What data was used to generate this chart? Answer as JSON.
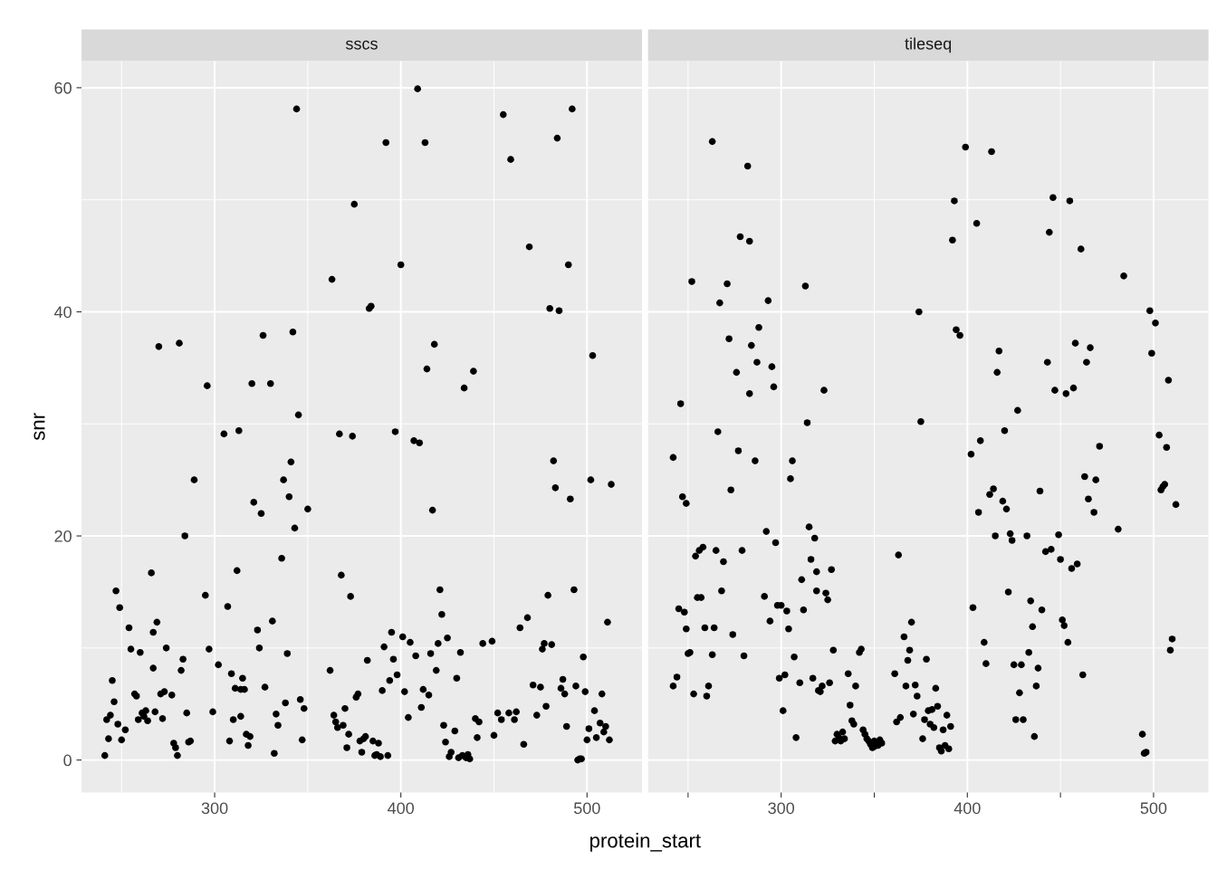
{
  "chart_data": [
    {
      "type": "scatter",
      "title": "sscs",
      "xlabel": "protein_start",
      "ylabel": "snr",
      "grid": true,
      "legend": false,
      "marker": "circle",
      "xlim": [
        228.5,
        529.5
      ],
      "ylim": [
        -2.9,
        62.4
      ],
      "xticks": [
        {
          "value": 250,
          "label": null
        },
        300,
        {
          "value": 350,
          "label": null
        },
        400,
        {
          "value": 450,
          "label": null
        },
        500
      ],
      "yticks": [
        0,
        {
          "value": 10,
          "label": null
        },
        20,
        {
          "value": 30,
          "label": null
        },
        40,
        {
          "value": 50,
          "label": null
        },
        60
      ],
      "series": [
        {
          "color": "#000000",
          "x": [
            241,
            242,
            243,
            244,
            245,
            246,
            247,
            248,
            249,
            250,
            252,
            254,
            255,
            257,
            258,
            259,
            260,
            261,
            262,
            263,
            264,
            266,
            267,
            267,
            268,
            269,
            270,
            271,
            272,
            273,
            274,
            277,
            278,
            279,
            280,
            281,
            282,
            283,
            284,
            285,
            286,
            287,
            289,
            295,
            296,
            297,
            299,
            302,
            305,
            307,
            308,
            309,
            310,
            311,
            312,
            313,
            314,
            314,
            315,
            316,
            317,
            318,
            319,
            320,
            321,
            323,
            324,
            325,
            326,
            327,
            330,
            331,
            332,
            333,
            334,
            336,
            337,
            338,
            339,
            340,
            341,
            342,
            343,
            344,
            345,
            346,
            347,
            348,
            350,
            362,
            363,
            364,
            365,
            366,
            367,
            368,
            369,
            370,
            371,
            372,
            373,
            374,
            375,
            376,
            377,
            378,
            379,
            380,
            381,
            382,
            383,
            384,
            385,
            386,
            387,
            388,
            389,
            390,
            391,
            392,
            393,
            394,
            395,
            396,
            397,
            398,
            400,
            401,
            402,
            404,
            405,
            407,
            408,
            409,
            410,
            411,
            412,
            413,
            414,
            415,
            416,
            417,
            418,
            419,
            420,
            421,
            422,
            423,
            424,
            425,
            426,
            427,
            429,
            430,
            431,
            432,
            433,
            434,
            435,
            436,
            437,
            439,
            440,
            441,
            442,
            444,
            449,
            450,
            452,
            454,
            455,
            458,
            459,
            461,
            462,
            464,
            466,
            468,
            469,
            471,
            473,
            475,
            476,
            477,
            478,
            479,
            480,
            481,
            482,
            483,
            484,
            485,
            486,
            487,
            488,
            489,
            490,
            491,
            492,
            493,
            494,
            495,
            496,
            497,
            498,
            499,
            500,
            501,
            502,
            503,
            504,
            505,
            507,
            508,
            509,
            510,
            511,
            512,
            513
          ],
          "values": [
            0.4,
            3.6,
            1.9,
            4.0,
            7.1,
            5.2,
            15.1,
            3.2,
            13.6,
            1.8,
            2.7,
            11.8,
            9.9,
            5.9,
            5.7,
            3.6,
            9.6,
            4.2,
            3.9,
            4.4,
            3.5,
            16.7,
            11.4,
            8.2,
            4.3,
            12.3,
            36.9,
            5.9,
            3.7,
            6.1,
            10.0,
            5.8,
            1.5,
            1.1,
            0.4,
            37.2,
            8.0,
            9.0,
            20.0,
            4.2,
            1.6,
            1.7,
            25.0,
            14.7,
            33.4,
            9.9,
            4.3,
            8.5,
            29.1,
            13.7,
            1.7,
            7.7,
            3.6,
            6.4,
            16.9,
            29.4,
            6.3,
            3.9,
            7.3,
            6.3,
            2.3,
            1.3,
            2.1,
            33.6,
            23.0,
            11.6,
            10.0,
            22.0,
            37.9,
            6.5,
            33.6,
            12.4,
            0.6,
            4.1,
            3.1,
            18.0,
            25.0,
            5.1,
            9.5,
            23.5,
            26.6,
            38.2,
            20.7,
            58.1,
            30.8,
            5.4,
            1.8,
            4.6,
            22.4,
            8.0,
            42.9,
            4.0,
            3.4,
            2.9,
            29.1,
            16.5,
            3.1,
            4.6,
            1.1,
            2.3,
            14.6,
            28.9,
            49.6,
            5.6,
            5.9,
            1.7,
            0.7,
            1.9,
            2.1,
            8.9,
            40.3,
            40.5,
            1.7,
            0.4,
            0.5,
            1.5,
            0.3,
            6.2,
            10.1,
            55.1,
            0.4,
            7.1,
            11.4,
            9.0,
            29.3,
            7.6,
            44.2,
            11.0,
            6.1,
            3.8,
            10.5,
            28.5,
            9.3,
            59.9,
            28.3,
            4.7,
            6.3,
            55.1,
            34.9,
            5.8,
            9.5,
            22.3,
            37.1,
            8.0,
            10.4,
            15.2,
            13.0,
            3.1,
            1.6,
            10.9,
            0.3,
            0.7,
            2.6,
            7.3,
            0.2,
            9.6,
            0.4,
            33.2,
            0.2,
            0.5,
            0.1,
            34.7,
            3.7,
            2.0,
            3.4,
            10.4,
            10.6,
            2.2,
            4.2,
            3.6,
            57.6,
            4.2,
            53.6,
            3.6,
            4.3,
            11.8,
            1.4,
            12.7,
            45.8,
            6.7,
            4.0,
            6.5,
            9.9,
            10.4,
            4.8,
            14.7,
            40.3,
            10.3,
            26.7,
            24.3,
            55.5,
            40.1,
            6.4,
            7.2,
            5.9,
            3.0,
            44.2,
            23.3,
            58.1,
            15.2,
            6.6,
            0.0,
            0.1,
            0.1,
            9.2,
            6.1,
            1.8,
            2.8,
            25.0,
            36.1,
            4.4,
            2.0,
            3.3,
            5.9,
            2.5,
            3.0,
            12.3,
            1.8,
            24.6
          ]
        }
      ]
    },
    {
      "type": "scatter",
      "title": "tileseq",
      "grid": true,
      "legend": false,
      "marker": "circle",
      "tick_labels": "x",
      "xlim": [
        228.5,
        529.5
      ],
      "ylim": [
        -2.9,
        62.4
      ],
      "xticks": [
        {
          "value": 250,
          "label": null
        },
        300,
        {
          "value": 350,
          "label": null
        },
        400,
        {
          "value": 450,
          "label": null
        },
        500
      ],
      "yticks": [
        0,
        {
          "value": 10,
          "label": null
        },
        20,
        {
          "value": 30,
          "label": null
        },
        40,
        {
          "value": 50,
          "label": null
        },
        60
      ],
      "series": [
        {
          "color": "#000000",
          "x": [
            242,
            242,
            244,
            245,
            246,
            247,
            248,
            249,
            249,
            250,
            251,
            252,
            253,
            254,
            255,
            256,
            257,
            258,
            259,
            260,
            261,
            263,
            263,
            264,
            265,
            266,
            267,
            268,
            269,
            271,
            272,
            273,
            274,
            276,
            277,
            278,
            279,
            280,
            282,
            283,
            283,
            284,
            286,
            287,
            288,
            291,
            292,
            293,
            294,
            295,
            296,
            297,
            298,
            299,
            300,
            301,
            302,
            303,
            304,
            305,
            306,
            307,
            308,
            310,
            311,
            312,
            313,
            314,
            315,
            316,
            317,
            318,
            319,
            319,
            320,
            321,
            322,
            323,
            324,
            325,
            326,
            327,
            328,
            329,
            330,
            331,
            332,
            333,
            334,
            336,
            337,
            338,
            339,
            340,
            342,
            343,
            344,
            345,
            346,
            347,
            348,
            349,
            350,
            350,
            352,
            353,
            354,
            361,
            362,
            363,
            364,
            366,
            367,
            368,
            369,
            370,
            371,
            372,
            373,
            374,
            375,
            376,
            377,
            378,
            379,
            380,
            381,
            382,
            383,
            384,
            385,
            386,
            387,
            388,
            389,
            390,
            391,
            392,
            393,
            394,
            396,
            399,
            402,
            403,
            405,
            406,
            407,
            409,
            410,
            412,
            413,
            414,
            415,
            416,
            417,
            419,
            420,
            421,
            422,
            423,
            424,
            425,
            426,
            427,
            428,
            429,
            430,
            432,
            433,
            434,
            435,
            436,
            437,
            438,
            439,
            440,
            442,
            443,
            444,
            445,
            446,
            447,
            449,
            450,
            451,
            452,
            453,
            454,
            455,
            456,
            457,
            458,
            459,
            461,
            462,
            463,
            464,
            465,
            466,
            468,
            469,
            471,
            481,
            484,
            494,
            495,
            496,
            498,
            499,
            501,
            503,
            504,
            505,
            506,
            507,
            508,
            509,
            510,
            512
          ],
          "values": [
            6.6,
            27.0,
            7.4,
            13.5,
            31.8,
            23.5,
            13.2,
            11.7,
            22.9,
            9.5,
            9.6,
            42.7,
            5.9,
            18.2,
            14.5,
            18.7,
            14.5,
            19.0,
            11.8,
            5.7,
            6.6,
            55.2,
            9.4,
            11.8,
            18.7,
            29.3,
            40.8,
            15.1,
            17.7,
            42.5,
            37.6,
            24.1,
            11.2,
            34.6,
            27.6,
            46.7,
            18.7,
            9.3,
            53.0,
            46.3,
            32.7,
            37.0,
            26.7,
            35.5,
            38.6,
            14.6,
            20.4,
            41.0,
            12.4,
            35.1,
            33.3,
            19.4,
            13.8,
            7.3,
            13.8,
            4.4,
            7.6,
            13.3,
            11.7,
            25.1,
            26.7,
            9.2,
            2.0,
            6.9,
            16.1,
            13.4,
            42.3,
            30.1,
            20.8,
            17.9,
            7.3,
            19.8,
            15.1,
            16.8,
            6.2,
            6.1,
            6.6,
            33.0,
            14.9,
            14.3,
            6.9,
            17.0,
            9.8,
            1.7,
            2.3,
            2.0,
            1.7,
            2.5,
            1.9,
            7.7,
            4.9,
            3.5,
            3.2,
            6.6,
            9.6,
            9.9,
            2.7,
            2.3,
            1.9,
            1.7,
            1.4,
            1.1,
            1.2,
            1.7,
            1.3,
            1.8,
            1.5,
            7.7,
            3.4,
            18.3,
            3.8,
            11.0,
            6.6,
            8.9,
            9.8,
            12.3,
            4.1,
            6.7,
            5.7,
            40.0,
            30.2,
            1.9,
            3.6,
            9.0,
            4.4,
            3.2,
            4.5,
            2.9,
            6.4,
            4.8,
            1.1,
            0.8,
            2.7,
            1.3,
            4.0,
            1.0,
            3.0,
            46.4,
            49.9,
            38.4,
            37.9,
            54.7,
            27.3,
            13.6,
            47.9,
            22.1,
            28.5,
            10.5,
            8.6,
            23.7,
            54.3,
            24.2,
            20.0,
            34.6,
            36.5,
            23.1,
            29.4,
            22.4,
            15.0,
            20.2,
            19.6,
            8.5,
            3.6,
            31.2,
            6.0,
            8.5,
            3.6,
            20.0,
            9.6,
            14.2,
            11.9,
            2.1,
            6.6,
            8.2,
            24.0,
            13.4,
            18.6,
            35.5,
            47.1,
            18.8,
            50.2,
            33.0,
            20.1,
            17.9,
            12.5,
            12.0,
            32.7,
            10.5,
            49.9,
            17.1,
            33.2,
            37.2,
            17.5,
            45.6,
            7.6,
            25.3,
            35.5,
            23.3,
            36.8,
            22.1,
            25.0,
            28.0,
            20.6,
            43.2,
            2.3,
            0.6,
            0.7,
            40.1,
            36.3,
            39.0,
            29.0,
            24.1,
            24.4,
            24.6,
            27.9,
            33.9,
            9.8,
            10.8,
            22.8
          ]
        }
      ]
    }
  ]
}
